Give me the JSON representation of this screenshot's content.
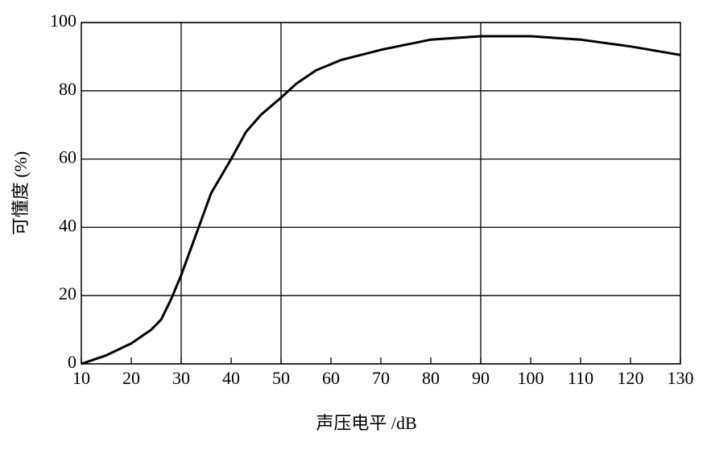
{
  "chart_data": {
    "type": "line",
    "xlabel": "声压电平 /dB",
    "ylabel": "可懂度 (%)",
    "x": [
      10,
      15,
      20,
      24,
      26,
      28,
      30,
      33,
      36,
      40,
      43,
      46,
      50,
      53,
      57,
      62,
      70,
      80,
      90,
      95,
      100,
      110,
      120,
      130
    ],
    "values": [
      0,
      2.5,
      6,
      10,
      13,
      19,
      26,
      38,
      50,
      60,
      68,
      73,
      78,
      82,
      86,
      89,
      92,
      95,
      96,
      96,
      96,
      95,
      93,
      90.5
    ],
    "color": "#000000",
    "xlim": [
      10,
      130
    ],
    "xticks": [
      10,
      20,
      30,
      40,
      50,
      60,
      70,
      80,
      90,
      100,
      110,
      120,
      130
    ],
    "ylim": [
      0,
      100
    ],
    "yticks": [
      0,
      20,
      40,
      60,
      80,
      100
    ],
    "xgrid": [
      30,
      50,
      90
    ],
    "grid": true
  }
}
